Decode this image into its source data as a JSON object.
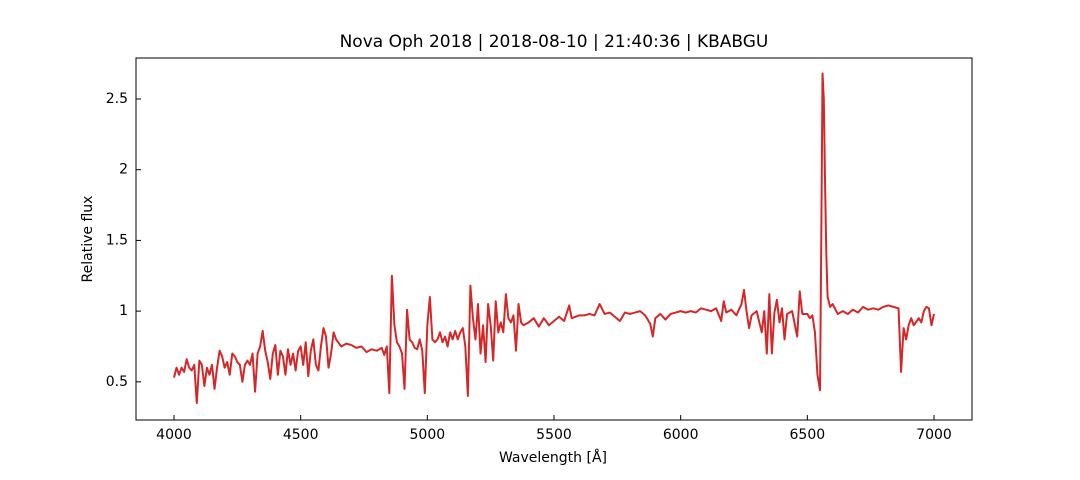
{
  "chart_data": {
    "type": "line",
    "title": "Nova Oph 2018 | 2018-08-10 | 21:40:36 | KBABGU",
    "x_label": "Wavelength [Å]",
    "y_label": "Relative flux",
    "xlim": [
      3850,
      7150
    ],
    "ylim": [
      0.23,
      2.79
    ],
    "xticks": [
      4000,
      4500,
      5000,
      5500,
      6000,
      6500,
      7000
    ],
    "yticks": [
      0.5,
      1.0,
      1.5,
      2.0,
      2.5
    ],
    "series": [
      {
        "name": "Nova Oph 2018",
        "color": "#d62728",
        "x": [
          4000,
          4010,
          4020,
          4030,
          4040,
          4050,
          4060,
          4070,
          4080,
          4090,
          4100,
          4110,
          4120,
          4130,
          4140,
          4150,
          4160,
          4170,
          4180,
          4190,
          4200,
          4210,
          4220,
          4230,
          4240,
          4250,
          4260,
          4270,
          4280,
          4290,
          4300,
          4310,
          4320,
          4330,
          4340,
          4350,
          4360,
          4370,
          4380,
          4390,
          4400,
          4410,
          4420,
          4430,
          4440,
          4450,
          4460,
          4470,
          4480,
          4490,
          4500,
          4510,
          4520,
          4530,
          4540,
          4550,
          4560,
          4570,
          4580,
          4590,
          4600,
          4610,
          4620,
          4630,
          4640,
          4660,
          4680,
          4700,
          4720,
          4740,
          4760,
          4780,
          4800,
          4820,
          4830,
          4840,
          4850,
          4860,
          4870,
          4880,
          4890,
          4900,
          4910,
          4920,
          4930,
          4940,
          4950,
          4960,
          4970,
          4980,
          4990,
          5000,
          5010,
          5020,
          5030,
          5040,
          5050,
          5060,
          5070,
          5080,
          5090,
          5100,
          5110,
          5120,
          5130,
          5140,
          5150,
          5160,
          5170,
          5180,
          5190,
          5200,
          5210,
          5220,
          5230,
          5240,
          5250,
          5260,
          5270,
          5280,
          5290,
          5300,
          5310,
          5320,
          5330,
          5340,
          5350,
          5360,
          5370,
          5380,
          5400,
          5420,
          5440,
          5460,
          5480,
          5500,
          5520,
          5540,
          5560,
          5570,
          5600,
          5620,
          5640,
          5660,
          5680,
          5700,
          5720,
          5740,
          5760,
          5780,
          5800,
          5820,
          5840,
          5860,
          5880,
          5890,
          5900,
          5920,
          5940,
          5960,
          5980,
          6000,
          6020,
          6040,
          6060,
          6080,
          6100,
          6120,
          6140,
          6160,
          6170,
          6180,
          6200,
          6220,
          6240,
          6250,
          6260,
          6270,
          6280,
          6300,
          6320,
          6330,
          6340,
          6350,
          6360,
          6370,
          6380,
          6390,
          6400,
          6410,
          6420,
          6440,
          6460,
          6470,
          6480,
          6500,
          6510,
          6520,
          6530,
          6540,
          6550,
          6555,
          6560,
          6565,
          6570,
          6575,
          6580,
          6590,
          6600,
          6620,
          6640,
          6660,
          6680,
          6700,
          6720,
          6740,
          6760,
          6780,
          6800,
          6820,
          6840,
          6860,
          6870,
          6880,
          6890,
          6900,
          6910,
          6920,
          6940,
          6950,
          6960,
          6970,
          6980,
          6990,
          7000
        ],
        "values": [
          0.53,
          0.6,
          0.55,
          0.6,
          0.57,
          0.66,
          0.6,
          0.58,
          0.62,
          0.35,
          0.65,
          0.62,
          0.47,
          0.6,
          0.55,
          0.62,
          0.45,
          0.6,
          0.72,
          0.68,
          0.6,
          0.64,
          0.55,
          0.7,
          0.68,
          0.64,
          0.62,
          0.5,
          0.62,
          0.65,
          0.62,
          0.7,
          0.43,
          0.7,
          0.75,
          0.86,
          0.72,
          0.64,
          0.52,
          0.7,
          0.76,
          0.55,
          0.72,
          0.68,
          0.55,
          0.73,
          0.62,
          0.7,
          0.58,
          0.72,
          0.75,
          0.62,
          0.78,
          0.54,
          0.72,
          0.8,
          0.62,
          0.58,
          0.75,
          0.88,
          0.82,
          0.6,
          0.7,
          0.85,
          0.8,
          0.75,
          0.77,
          0.76,
          0.74,
          0.75,
          0.71,
          0.73,
          0.72,
          0.74,
          0.69,
          0.75,
          0.42,
          1.25,
          0.9,
          0.78,
          0.75,
          0.7,
          0.45,
          1.01,
          0.8,
          0.78,
          0.74,
          0.73,
          0.8,
          0.72,
          0.42,
          0.9,
          1.1,
          0.8,
          0.78,
          0.8,
          0.85,
          0.78,
          0.82,
          0.75,
          0.85,
          0.8,
          0.86,
          0.8,
          0.85,
          0.88,
          0.75,
          0.4,
          1.18,
          0.95,
          0.8,
          1.05,
          0.7,
          0.9,
          0.64,
          1.05,
          0.9,
          0.65,
          1.07,
          0.85,
          0.92,
          0.85,
          1.12,
          0.95,
          0.92,
          0.97,
          0.72,
          1.05,
          0.92,
          0.9,
          0.92,
          0.95,
          0.89,
          0.95,
          0.9,
          0.93,
          0.96,
          0.93,
          1.04,
          0.95,
          0.97,
          0.97,
          0.98,
          0.97,
          1.05,
          0.98,
          0.99,
          0.96,
          0.93,
          0.99,
          0.98,
          0.99,
          1.0,
          0.97,
          0.91,
          0.82,
          0.95,
          0.98,
          0.94,
          0.98,
          0.99,
          1.0,
          0.99,
          1.0,
          0.99,
          1.02,
          1.01,
          1.0,
          1.02,
          0.93,
          1.07,
          0.99,
          1.01,
          0.97,
          1.05,
          1.15,
          1.0,
          0.88,
          0.97,
          1.0,
          0.85,
          1.0,
          0.7,
          1.12,
          0.7,
          0.99,
          1.08,
          0.92,
          1.02,
          0.8,
          0.98,
          1.0,
          0.82,
          1.14,
          0.98,
          0.98,
          0.95,
          0.97,
          0.85,
          0.55,
          0.44,
          1.5,
          2.68,
          2.5,
          1.9,
          1.4,
          1.1,
          1.03,
          1.05,
          0.98,
          1.0,
          0.98,
          1.01,
          0.99,
          1.03,
          1.01,
          1.02,
          1.01,
          1.03,
          1.04,
          1.03,
          1.02,
          0.57,
          0.88,
          0.8,
          0.9,
          0.95,
          0.9,
          0.95,
          0.92,
          1.0,
          1.03,
          1.02,
          0.9,
          0.98
        ]
      }
    ]
  }
}
